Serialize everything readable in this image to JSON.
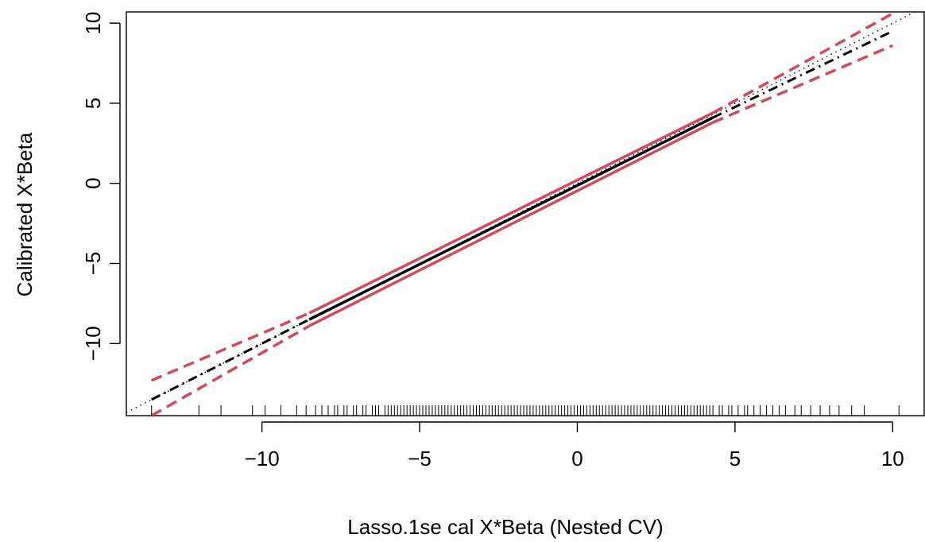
{
  "chart_data": {
    "type": "line",
    "title": "",
    "xlabel": "Lasso.1se cal X*Beta (Nested CV)",
    "ylabel": "Calibrated X*Beta",
    "xlim": [
      -14.3,
      11.0
    ],
    "ylim": [
      -14.5,
      10.7
    ],
    "x_ticks": [
      -10,
      -5,
      0,
      5,
      10
    ],
    "x_tick_labels": [
      "−10",
      "−5",
      "0",
      "5",
      "10"
    ],
    "y_ticks": [
      -10,
      -5,
      0,
      5,
      10
    ],
    "y_tick_labels": [
      "−10",
      "−5",
      "0",
      "5",
      "10"
    ],
    "grid": false,
    "colors": {
      "calibration": "#000000",
      "confidence_band": "#d1495b",
      "reference": "#000000",
      "rug": "#000000"
    },
    "series": [
      {
        "role": "identity-reference",
        "style": "dotted",
        "color": "#000000",
        "x": [
          -14.3,
          11.0
        ],
        "y": [
          -14.3,
          11.0
        ]
      },
      {
        "role": "calibration-extrapolated-lower",
        "style": "dash-dot",
        "color": "#000000",
        "x": [
          -13.5,
          -8.5
        ],
        "y": [
          -13.5,
          -8.5
        ]
      },
      {
        "role": "calibration-fit",
        "style": "solid",
        "color": "#000000",
        "x": [
          -8.5,
          4.3
        ],
        "y": [
          -8.5,
          4.1
        ]
      },
      {
        "role": "calibration-extrapolated-upper",
        "style": "dash-dot",
        "color": "#000000",
        "x": [
          4.3,
          10.0
        ],
        "y": [
          4.1,
          9.5
        ]
      },
      {
        "role": "upper-band-solid",
        "style": "solid",
        "color": "#d1495b",
        "x": [
          -8.5,
          4.3
        ],
        "y": [
          -8.1,
          4.4
        ]
      },
      {
        "role": "lower-band-solid",
        "style": "solid",
        "color": "#d1495b",
        "x": [
          -8.5,
          4.3
        ],
        "y": [
          -8.9,
          3.8
        ]
      },
      {
        "role": "upper-band-extrapolated-lower",
        "style": "dashed",
        "color": "#d1495b",
        "x": [
          -13.5,
          -8.5
        ],
        "y": [
          -12.3,
          -8.1
        ]
      },
      {
        "role": "lower-band-extrapolated-lower",
        "style": "dashed",
        "color": "#d1495b",
        "x": [
          -13.5,
          -8.5
        ],
        "y": [
          -14.5,
          -8.9
        ]
      },
      {
        "role": "upper-band-extrapolated-upper",
        "style": "dashed",
        "color": "#d1495b",
        "x": [
          4.3,
          10.0
        ],
        "y": [
          4.4,
          10.6
        ]
      },
      {
        "role": "lower-band-extrapolated-upper",
        "style": "dashed",
        "color": "#d1495b",
        "x": [
          4.3,
          10.0
        ],
        "y": [
          3.8,
          8.6
        ]
      }
    ],
    "rug": {
      "x": [
        -13.5,
        -12.0,
        -11.3,
        -10.3,
        -9.9,
        -9.4,
        -8.9,
        -8.6,
        -8.3,
        -8.1,
        -7.9,
        -7.7,
        -7.6,
        -7.4,
        -7.3,
        -7.1,
        -7.0,
        -6.8,
        -6.7,
        -6.5,
        -6.4,
        -6.3,
        -6.1,
        -6.0,
        -5.9,
        -5.8,
        -5.7,
        -5.6,
        -5.5,
        -5.4,
        -5.3,
        -5.2,
        -5.1,
        -5.0,
        -4.9,
        -4.8,
        -4.7,
        -4.6,
        -4.5,
        -4.4,
        -4.3,
        -4.2,
        -4.1,
        -4.0,
        -3.9,
        -3.8,
        -3.7,
        -3.6,
        -3.5,
        -3.4,
        -3.3,
        -3.2,
        -3.1,
        -3.0,
        -2.9,
        -2.8,
        -2.7,
        -2.6,
        -2.5,
        -2.4,
        -2.3,
        -2.2,
        -2.1,
        -2.0,
        -1.9,
        -1.8,
        -1.7,
        -1.6,
        -1.5,
        -1.4,
        -1.3,
        -1.2,
        -1.1,
        -1.0,
        -0.9,
        -0.8,
        -0.7,
        -0.6,
        -0.5,
        -0.4,
        -0.3,
        -0.2,
        -0.1,
        0.0,
        0.1,
        0.2,
        0.3,
        0.4,
        0.5,
        0.6,
        0.7,
        0.8,
        0.9,
        1.0,
        1.1,
        1.2,
        1.3,
        1.4,
        1.5,
        1.6,
        1.7,
        1.8,
        1.9,
        2.0,
        2.1,
        2.2,
        2.3,
        2.4,
        2.5,
        2.6,
        2.7,
        2.8,
        2.9,
        3.0,
        3.1,
        3.2,
        3.3,
        3.4,
        3.5,
        3.6,
        3.7,
        3.8,
        3.9,
        4.0,
        4.1,
        4.2,
        4.3,
        4.5,
        4.6,
        4.8,
        4.9,
        5.1,
        5.3,
        5.4,
        5.6,
        5.8,
        6.0,
        6.2,
        6.4,
        6.6,
        6.9,
        7.1,
        7.4,
        7.7,
        8.0,
        8.3,
        8.7,
        9.1,
        10.2
      ]
    }
  }
}
